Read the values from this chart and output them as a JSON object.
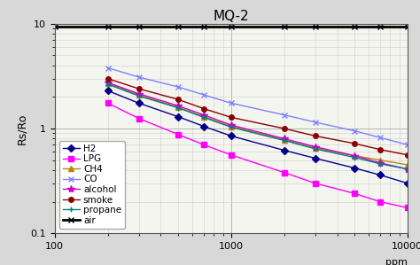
{
  "title": "MQ-2",
  "xlabel": "ppm",
  "ylabel": "Rs/Ro",
  "xlim": [
    100,
    10000
  ],
  "ylim": [
    0.1,
    10
  ],
  "series": {
    "H2": {
      "x": [
        200,
        300,
        500,
        700,
        1000,
        2000,
        3000,
        5000,
        7000,
        10000
      ],
      "y": [
        2.3,
        1.75,
        1.3,
        1.05,
        0.85,
        0.62,
        0.52,
        0.42,
        0.36,
        0.3
      ],
      "color": "#00008B",
      "marker": "D",
      "markersize": 4,
      "linestyle": "-",
      "linewidth": 1.0
    },
    "LPG": {
      "x": [
        200,
        300,
        500,
        700,
        1000,
        2000,
        3000,
        5000,
        7000,
        10000
      ],
      "y": [
        1.75,
        1.25,
        0.88,
        0.7,
        0.56,
        0.38,
        0.3,
        0.24,
        0.2,
        0.175
      ],
      "color": "#FF00FF",
      "marker": "s",
      "markersize": 4,
      "linestyle": "-",
      "linewidth": 1.0
    },
    "CH4": {
      "x": [
        200,
        300,
        500,
        700,
        1000,
        2000,
        3000,
        5000,
        7000,
        10000
      ],
      "y": [
        2.7,
        2.1,
        1.6,
        1.3,
        1.05,
        0.78,
        0.65,
        0.55,
        0.5,
        0.45
      ],
      "color": "#B8860B",
      "marker": "^",
      "markersize": 4,
      "linestyle": "-",
      "linewidth": 1.0
    },
    "CO": {
      "x": [
        200,
        300,
        500,
        700,
        1000,
        2000,
        3000,
        5000,
        7000,
        10000
      ],
      "y": [
        3.8,
        3.1,
        2.5,
        2.1,
        1.75,
        1.35,
        1.15,
        0.95,
        0.82,
        0.7
      ],
      "color": "#8080FF",
      "marker": "x",
      "markersize": 5,
      "linestyle": "-",
      "linewidth": 1.0
    },
    "alcohol": {
      "x": [
        200,
        300,
        500,
        700,
        1000,
        2000,
        3000,
        5000,
        7000,
        10000
      ],
      "y": [
        2.75,
        2.15,
        1.65,
        1.35,
        1.08,
        0.8,
        0.67,
        0.55,
        0.47,
        0.41
      ],
      "color": "#CC00CC",
      "marker": "*",
      "markersize": 6,
      "linestyle": "-",
      "linewidth": 1.0
    },
    "smoke": {
      "x": [
        200,
        300,
        500,
        700,
        1000,
        2000,
        3000,
        5000,
        7000,
        10000
      ],
      "y": [
        3.0,
        2.4,
        1.9,
        1.55,
        1.28,
        1.0,
        0.85,
        0.72,
        0.63,
        0.56
      ],
      "color": "#8B0000",
      "marker": "o",
      "markersize": 4,
      "linestyle": "-",
      "linewidth": 1.0
    },
    "propane": {
      "x": [
        200,
        300,
        500,
        700,
        1000,
        2000,
        3000,
        5000,
        7000,
        10000
      ],
      "y": [
        2.65,
        2.05,
        1.58,
        1.28,
        1.03,
        0.77,
        0.64,
        0.53,
        0.46,
        0.41
      ],
      "color": "#008080",
      "marker": "+",
      "markersize": 5,
      "linestyle": "-",
      "linewidth": 1.0
    },
    "air": {
      "x": [
        100,
        200,
        300,
        500,
        700,
        1000,
        2000,
        3000,
        5000,
        7000,
        10000
      ],
      "y": [
        9.5,
        9.5,
        9.5,
        9.5,
        9.5,
        9.5,
        9.5,
        9.5,
        9.5,
        9.5,
        9.5
      ],
      "color": "#000000",
      "marker": "x",
      "markersize": 5,
      "linestyle": "-",
      "linewidth": 2.0
    }
  },
  "bg_color": "#d8d8d8",
  "plot_bg_color": "#f5f5f0",
  "grid_major_color": "#aaaaaa",
  "grid_minor_color": "#cccccc",
  "title_fontsize": 11,
  "tick_fontsize": 8,
  "legend_fontsize": 7.5
}
